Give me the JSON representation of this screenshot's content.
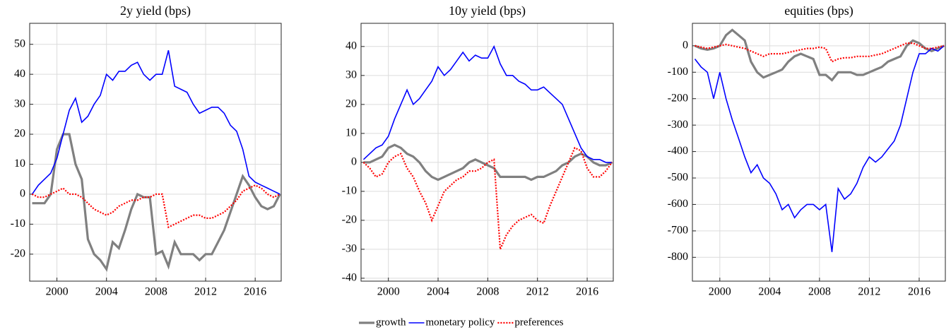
{
  "chart_data": [
    {
      "type": "line",
      "title": "2y yield (bps)",
      "grid": true,
      "x": [
        1998,
        1998.5,
        1999,
        1999.5,
        2000,
        2000.5,
        2001,
        2001.5,
        2002,
        2002.5,
        2003,
        2003.5,
        2004,
        2004.5,
        2005,
        2005.5,
        2006,
        2006.5,
        2007,
        2007.5,
        2008,
        2008.5,
        2009,
        2009.5,
        2010,
        2010.5,
        2011,
        2011.5,
        2012,
        2012.5,
        2013,
        2013.5,
        2014,
        2014.5,
        2015,
        2015.5,
        2016,
        2016.5,
        2017,
        2017.5,
        2018
      ],
      "xlim": [
        1997.8,
        2018.1
      ],
      "xticks": [
        2000,
        2004,
        2008,
        2012,
        2016
      ],
      "ylim": [
        -29,
        57
      ],
      "yticks": [
        -20,
        -10,
        0,
        10,
        20,
        30,
        40,
        50
      ],
      "series": [
        {
          "name": "growth",
          "color": "#808080",
          "values": [
            -3,
            -3,
            -3,
            0,
            15,
            20,
            20,
            10,
            5,
            -15,
            -20,
            -22,
            -25,
            -16,
            -18,
            -12,
            -5,
            0,
            -1,
            -1,
            -20,
            -19,
            -24,
            -16,
            -20,
            -20,
            -20,
            -22,
            -20,
            -20,
            -16,
            -12,
            -6,
            0,
            6,
            3,
            -1,
            -4,
            -5,
            -4,
            0
          ]
        },
        {
          "name": "monetary policy",
          "color": "#0000ff",
          "values": [
            0,
            3,
            5,
            7,
            12,
            20,
            28,
            32,
            24,
            26,
            30,
            33,
            40,
            38,
            41,
            41,
            43,
            44,
            40,
            38,
            40,
            40,
            48,
            36,
            35,
            34,
            30,
            27,
            28,
            29,
            29,
            27,
            23,
            21,
            15,
            6,
            4,
            3,
            2,
            1,
            0
          ]
        },
        {
          "name": "preferences",
          "color": "#ff0000",
          "values": [
            0,
            -1,
            -1,
            0,
            1,
            2,
            0,
            0,
            -1,
            -3,
            -5,
            -6,
            -7,
            -6,
            -4,
            -3,
            -2,
            -2,
            -1,
            -1,
            0,
            0,
            -11,
            -10,
            -9,
            -8,
            -7,
            -7,
            -8,
            -8,
            -7,
            -6,
            -4,
            -2,
            1,
            2,
            3,
            2,
            0,
            -1,
            0
          ]
        }
      ]
    },
    {
      "type": "line",
      "title": "10y yield (bps)",
      "grid": true,
      "x": [
        1998,
        1998.5,
        1999,
        1999.5,
        2000,
        2000.5,
        2001,
        2001.5,
        2002,
        2002.5,
        2003,
        2003.5,
        2004,
        2004.5,
        2005,
        2005.5,
        2006,
        2006.5,
        2007,
        2007.5,
        2008,
        2008.5,
        2009,
        2009.5,
        2010,
        2010.5,
        2011,
        2011.5,
        2012,
        2012.5,
        2013,
        2013.5,
        2014,
        2014.5,
        2015,
        2015.5,
        2016,
        2016.5,
        2017,
        2017.5,
        2018
      ],
      "xlim": [
        1997.8,
        2018.1
      ],
      "xticks": [
        2000,
        2004,
        2008,
        2012,
        2016
      ],
      "ylim": [
        -41,
        48
      ],
      "yticks": [
        -40,
        -30,
        -20,
        -10,
        0,
        10,
        20,
        30,
        40
      ],
      "series": [
        {
          "name": "growth",
          "color": "#808080",
          "values": [
            0,
            0,
            1,
            2,
            5,
            6,
            5,
            3,
            2,
            0,
            -3,
            -5,
            -6,
            -5,
            -4,
            -3,
            -2,
            0,
            1,
            0,
            -1,
            -2,
            -5,
            -5,
            -5,
            -5,
            -5,
            -6,
            -5,
            -5,
            -4,
            -3,
            -1,
            0,
            2,
            3,
            2,
            0,
            -1,
            -1,
            0
          ]
        },
        {
          "name": "monetary policy",
          "color": "#0000ff",
          "values": [
            1,
            3,
            5,
            6,
            9,
            15,
            20,
            25,
            20,
            22,
            25,
            28,
            33,
            30,
            32,
            35,
            38,
            35,
            37,
            36,
            36,
            40,
            34,
            30,
            30,
            28,
            27,
            25,
            25,
            26,
            24,
            22,
            20,
            15,
            10,
            5,
            2,
            1,
            1,
            0,
            0
          ]
        },
        {
          "name": "preferences",
          "color": "#ff0000",
          "values": [
            0,
            -2,
            -5,
            -4,
            0,
            2,
            3,
            -2,
            -5,
            -10,
            -14,
            -20,
            -15,
            -10,
            -8,
            -6,
            -5,
            -3,
            -3,
            -2,
            0,
            1,
            -30,
            -25,
            -22,
            -20,
            -19,
            -18,
            -20,
            -21,
            -15,
            -10,
            -5,
            0,
            5,
            4,
            -2,
            -5,
            -5,
            -3,
            0
          ]
        }
      ]
    },
    {
      "type": "line",
      "title": "equities (bps)",
      "grid": true,
      "x": [
        1998,
        1998.5,
        1999,
        1999.5,
        2000,
        2000.5,
        2001,
        2001.5,
        2002,
        2002.5,
        2003,
        2003.5,
        2004,
        2004.5,
        2005,
        2005.5,
        2006,
        2006.5,
        2007,
        2007.5,
        2008,
        2008.5,
        2009,
        2009.5,
        2010,
        2010.5,
        2011,
        2011.5,
        2012,
        2012.5,
        2013,
        2013.5,
        2014,
        2014.5,
        2015,
        2015.5,
        2016,
        2016.5,
        2017,
        2017.5,
        2018
      ],
      "xlim": [
        1997.8,
        2018.1
      ],
      "xticks": [
        2000,
        2004,
        2008,
        2012,
        2016
      ],
      "ylim": [
        -890,
        85
      ],
      "yticks": [
        -800,
        -700,
        -600,
        -500,
        -400,
        -300,
        -200,
        -100,
        0
      ],
      "series": [
        {
          "name": "growth",
          "color": "#808080",
          "values": [
            0,
            -10,
            -15,
            -10,
            0,
            40,
            60,
            40,
            20,
            -60,
            -100,
            -120,
            -110,
            -100,
            -90,
            -60,
            -40,
            -30,
            -40,
            -50,
            -110,
            -110,
            -130,
            -100,
            -100,
            -100,
            -110,
            -110,
            -100,
            -90,
            -80,
            -60,
            -50,
            -40,
            0,
            20,
            10,
            -10,
            -20,
            -10,
            0
          ]
        },
        {
          "name": "monetary policy",
          "color": "#0000ff",
          "values": [
            -50,
            -80,
            -100,
            -200,
            -100,
            -200,
            -280,
            -350,
            -420,
            -480,
            -450,
            -500,
            -520,
            -560,
            -620,
            -600,
            -650,
            -620,
            -600,
            -600,
            -620,
            -600,
            -780,
            -540,
            -580,
            -560,
            -520,
            -460,
            -420,
            -440,
            -420,
            -390,
            -360,
            -300,
            -200,
            -100,
            -30,
            -30,
            -10,
            -20,
            0
          ]
        },
        {
          "name": "preferences",
          "color": "#ff0000",
          "values": [
            0,
            -5,
            -10,
            -5,
            0,
            5,
            0,
            -5,
            -10,
            -20,
            -30,
            -40,
            -30,
            -30,
            -30,
            -25,
            -20,
            -15,
            -10,
            -10,
            -5,
            -10,
            -60,
            -50,
            -45,
            -45,
            -40,
            -40,
            -40,
            -35,
            -30,
            -20,
            -10,
            0,
            10,
            10,
            0,
            -10,
            -10,
            -5,
            0
          ]
        }
      ]
    }
  ]
}
